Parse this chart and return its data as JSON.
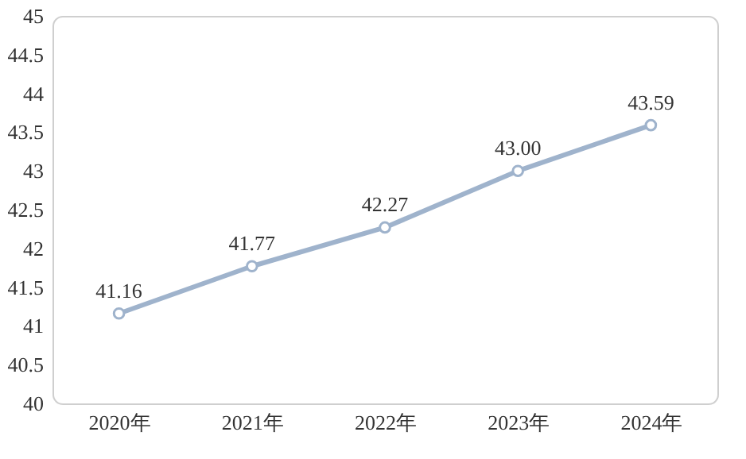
{
  "chart_data": {
    "type": "line",
    "categories": [
      "2020年",
      "2021年",
      "2022年",
      "2023年",
      "2024年"
    ],
    "values": [
      41.16,
      41.77,
      42.27,
      43.0,
      43.59
    ],
    "color": "#9fb3cc",
    "value_labels": [
      "41.16",
      "41.77",
      "42.27",
      "43.00",
      "43.59"
    ],
    "ylim": [
      40,
      45
    ],
    "yticks": [
      40,
      40.5,
      41,
      41.5,
      42,
      42.5,
      43,
      43.5,
      44,
      44.5,
      45
    ],
    "grid": false,
    "marker": "circle",
    "line_style": "solid"
  }
}
